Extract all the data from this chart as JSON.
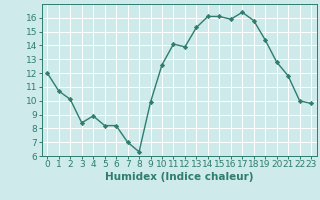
{
  "x": [
    0,
    1,
    2,
    3,
    4,
    5,
    6,
    7,
    8,
    9,
    10,
    11,
    12,
    13,
    14,
    15,
    16,
    17,
    18,
    19,
    20,
    21,
    22,
    23
  ],
  "y": [
    12,
    10.7,
    10.1,
    8.4,
    8.9,
    8.2,
    8.2,
    7.0,
    6.3,
    9.9,
    12.6,
    14.1,
    13.9,
    15.3,
    16.1,
    16.1,
    15.9,
    16.4,
    15.8,
    14.4,
    12.8,
    11.8,
    10.0,
    9.8
  ],
  "xlabel": "Humidex (Indice chaleur)",
  "xlim": [
    -0.5,
    23.5
  ],
  "ylim": [
    6,
    17
  ],
  "yticks": [
    6,
    7,
    8,
    9,
    10,
    11,
    12,
    13,
    14,
    15,
    16
  ],
  "xticks": [
    0,
    1,
    2,
    3,
    4,
    5,
    6,
    7,
    8,
    9,
    10,
    11,
    12,
    13,
    14,
    15,
    16,
    17,
    18,
    19,
    20,
    21,
    22,
    23
  ],
  "line_color": "#2e7d6e",
  "bg_color": "#ceeaea",
  "grid_color": "#ffffff",
  "marker": "D",
  "marker_size": 2.2,
  "line_width": 1.0,
  "xlabel_fontsize": 7.5,
  "tick_fontsize": 6.5
}
